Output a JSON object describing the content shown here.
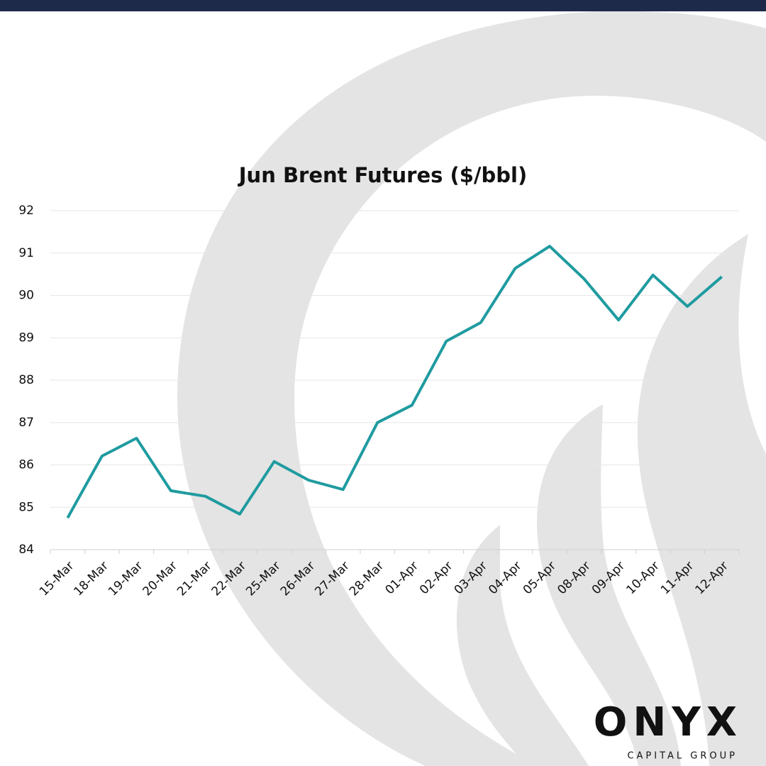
{
  "chart_data": {
    "type": "line",
    "title": "Jun Brent Futures ($/bbl)",
    "categories": [
      "15-Mar",
      "18-Mar",
      "19-Mar",
      "20-Mar",
      "21-Mar",
      "22-Mar",
      "25-Mar",
      "26-Mar",
      "27-Mar",
      "28-Mar",
      "01-Apr",
      "02-Apr",
      "03-Apr",
      "04-Apr",
      "05-Apr",
      "08-Apr",
      "09-Apr",
      "10-Apr",
      "11-Apr",
      "12-Apr"
    ],
    "values": [
      84.75,
      86.21,
      86.63,
      85.39,
      85.26,
      84.84,
      86.08,
      85.64,
      85.42,
      87.0,
      87.41,
      88.92,
      89.36,
      90.64,
      91.16,
      90.39,
      89.42,
      90.48,
      89.74,
      90.44
    ],
    "color": "#1f9ba0",
    "ylim": [
      84,
      92
    ],
    "yticks": [
      84,
      85,
      86,
      87,
      88,
      89,
      90,
      91,
      92
    ],
    "grid": true
  },
  "logo": {
    "name": "ONYX",
    "subtitle": "CAPITAL GROUP"
  }
}
